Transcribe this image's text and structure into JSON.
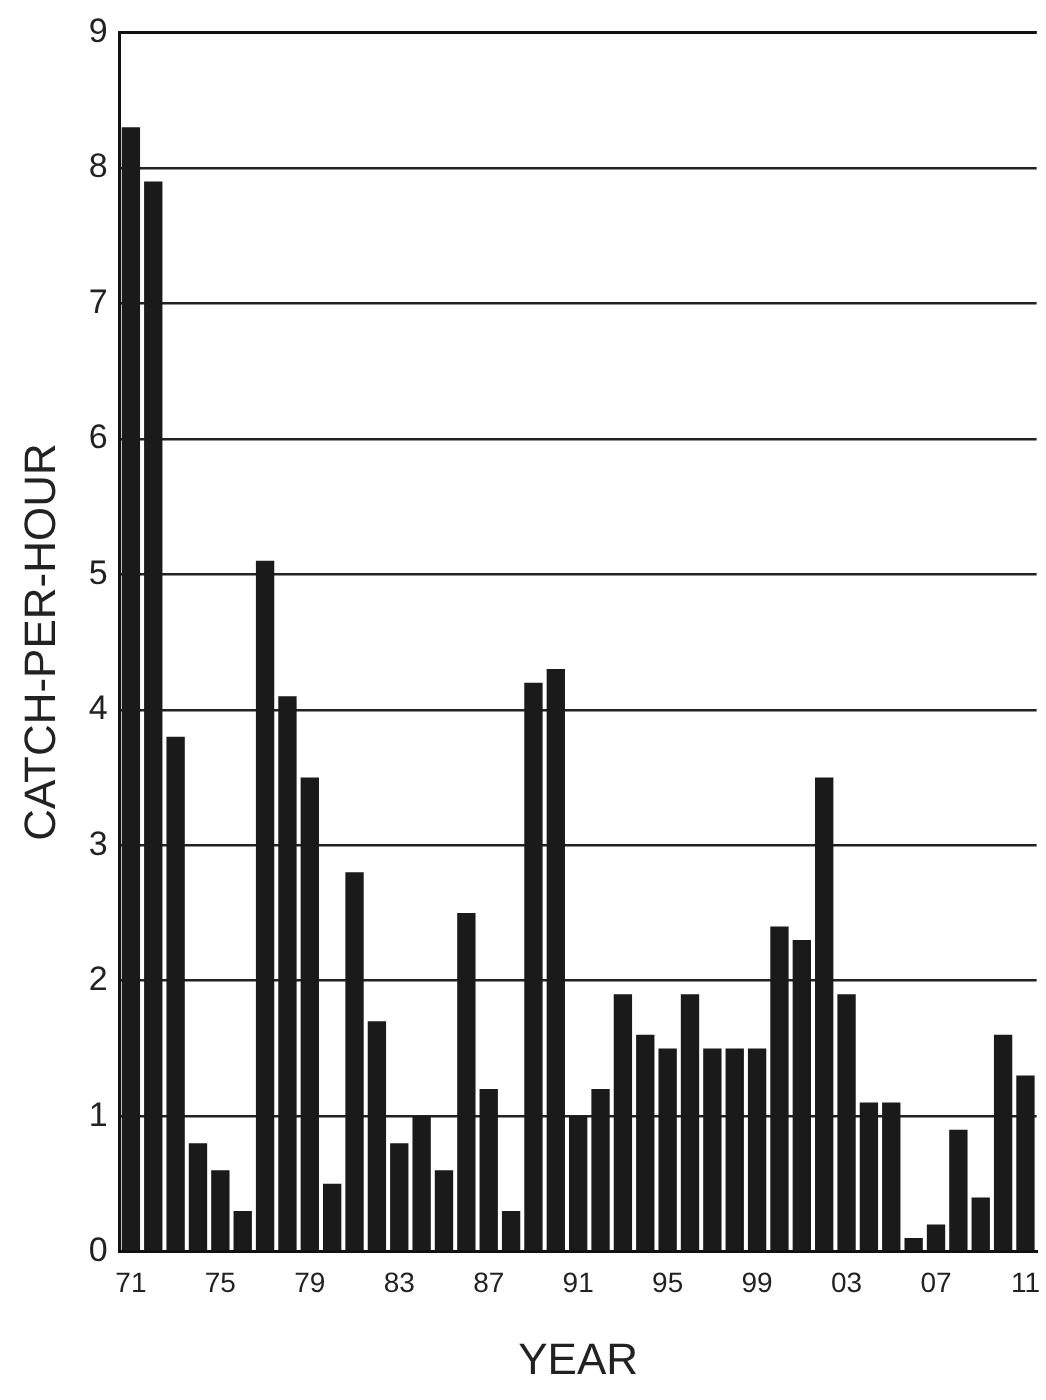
{
  "chart_data": {
    "type": "bar",
    "xlabel": "YEAR",
    "ylabel": "CATCH-PER-HOUR",
    "categories": [
      "71",
      null,
      null,
      null,
      "75",
      null,
      null,
      null,
      "79",
      null,
      null,
      null,
      "83",
      null,
      null,
      null,
      "87",
      null,
      null,
      null,
      "91",
      null,
      null,
      null,
      "95",
      null,
      null,
      null,
      "99",
      null,
      null,
      null,
      "03",
      null,
      null,
      null,
      "07",
      null,
      null,
      null,
      "11"
    ],
    "values": [
      8.3,
      7.9,
      3.8,
      0.8,
      0.6,
      0.3,
      5.1,
      4.1,
      3.5,
      0.5,
      2.8,
      1.7,
      0.8,
      1.0,
      0.6,
      2.5,
      1.2,
      0.3,
      4.2,
      4.3,
      1.0,
      1.2,
      1.9,
      1.6,
      1.5,
      1.9,
      1.5,
      1.5,
      1.5,
      2.4,
      2.3,
      3.5,
      1.9,
      1.1,
      1.1,
      0.1,
      0.2,
      0.9,
      0.4,
      1.6,
      1.3
    ],
    "color": "#1a1a1a",
    "ylim": [
      0,
      9
    ],
    "yticks": [
      0,
      1,
      2,
      3,
      4,
      5,
      6,
      7,
      8,
      9
    ],
    "grid": "y",
    "legend": false
  }
}
